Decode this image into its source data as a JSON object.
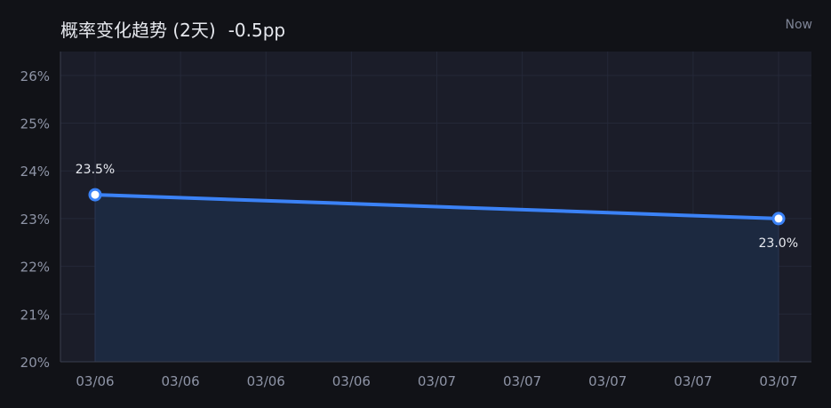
{
  "header": {
    "title": "概率变化趋势 (2天)",
    "change": "-0.5pp",
    "now_label": "Now"
  },
  "colors": {
    "background": "#111217",
    "plot_background": "#1b1d29",
    "line": "#3b82f6",
    "area": "#1c2940",
    "grid": "#242838",
    "text": "#8e94a6"
  },
  "chart_data": {
    "type": "area",
    "title": "概率变化趋势 (2天)",
    "xlabel": "",
    "ylabel": "",
    "ylim": [
      20,
      26.5
    ],
    "yticks": [
      20,
      21,
      22,
      23,
      24,
      25,
      26
    ],
    "ytick_labels": [
      "20%",
      "21%",
      "22%",
      "23%",
      "24%",
      "25%",
      "26%"
    ],
    "xtick_labels": [
      "03/06",
      "03/06",
      "03/06",
      "03/06",
      "03/07",
      "03/07",
      "03/07",
      "03/07",
      "03/07"
    ],
    "grid": true,
    "series": [
      {
        "points": [
          {
            "x": "03/06",
            "y": 23.5,
            "label": "23.5%"
          },
          {
            "x": "03/07",
            "y": 23.0,
            "label": "23.0%"
          }
        ]
      }
    ]
  }
}
